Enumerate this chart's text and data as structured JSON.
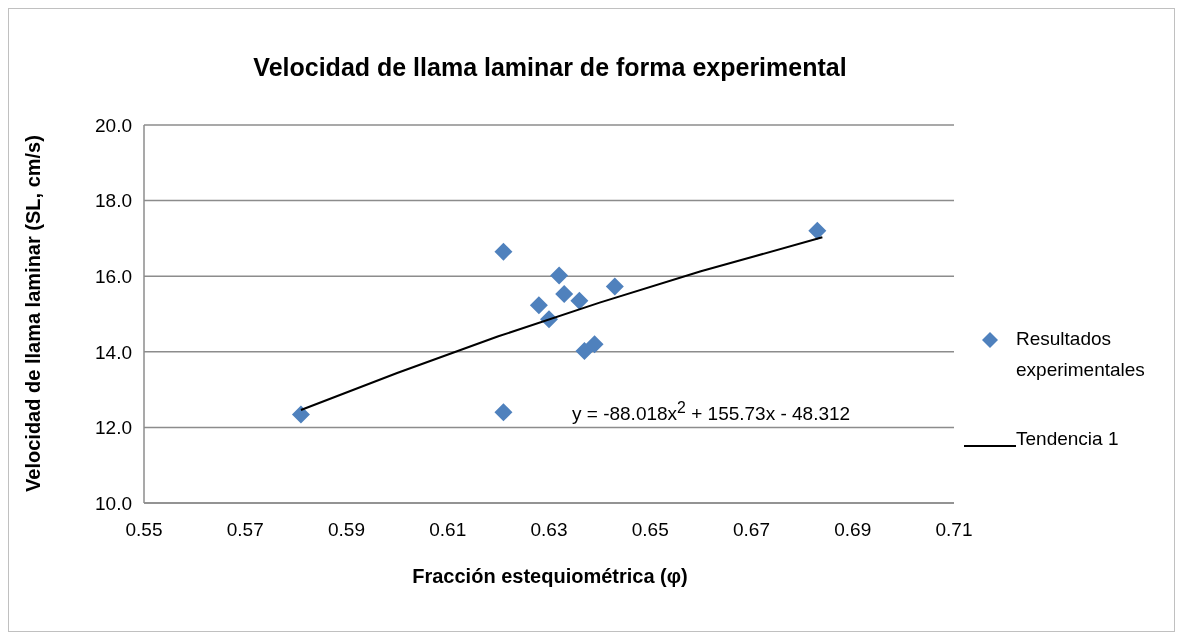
{
  "chart_data": {
    "type": "scatter",
    "title": "Velocidad de llama laminar de forma experimental",
    "xlabel": "Fracción estequiométrica (φ)",
    "ylabel": "Velocidad de llama laminar (SL, cm/s)",
    "xlim": [
      0.55,
      0.71
    ],
    "xticks": [
      0.55,
      0.57,
      0.59,
      0.61,
      0.63,
      0.65,
      0.67,
      0.69,
      0.71
    ],
    "ylim": [
      10,
      20
    ],
    "yticks": [
      {
        "value": 10,
        "label": "10.0"
      },
      {
        "value": 12,
        "label": "12.0"
      },
      {
        "value": 14,
        "label": "14.0"
      },
      {
        "value": 16,
        "label": "16.0"
      },
      {
        "value": 18,
        "label": "18.0"
      },
      {
        "value": 20,
        "label": "20.0"
      }
    ],
    "grid": "y",
    "legend": "right",
    "annotations": [
      "y = -88.018x$^{2}$ + 155.73x - 48.312"
    ],
    "series": [
      {
        "name": "Resultados experimentales",
        "marker": "diamond",
        "color": "#4f81bd",
        "x": [
          0.581,
          0.621,
          0.621,
          0.628,
          0.63,
          0.632,
          0.633,
          0.636,
          0.637,
          0.639,
          0.643,
          0.683
        ],
        "values": [
          12.34,
          12.4,
          16.65,
          15.23,
          14.86,
          16.02,
          15.53,
          15.35,
          14.02,
          14.2,
          15.73,
          17.2
        ]
      },
      {
        "name": "Tendencia 1",
        "type": "line",
        "marker": "none",
        "line_style": "solid",
        "color": "#000000",
        "x": [
          0.581,
          0.6,
          0.62,
          0.64,
          0.66,
          0.684
        ],
        "values": [
          12.46,
          13.44,
          14.41,
          15.3,
          16.13,
          17.03
        ]
      }
    ]
  }
}
